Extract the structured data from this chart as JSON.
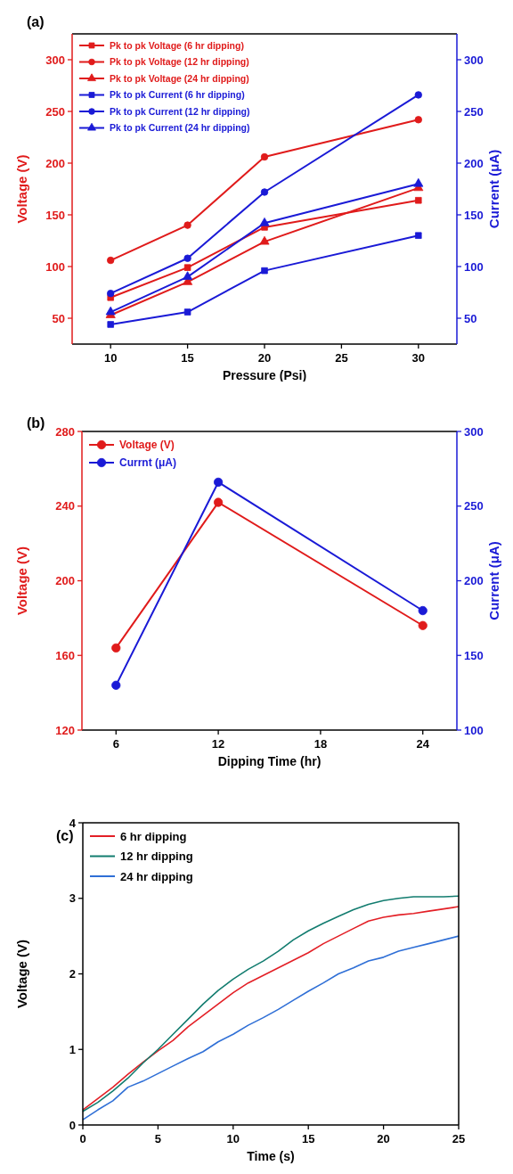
{
  "chart_data": [
    {
      "type": "line",
      "title": "(a)",
      "xlabel": "Pressure (Psi)",
      "ylabel": "Voltage (V)",
      "y2label": "Current (μA)",
      "x": [
        10,
        15,
        20,
        30
      ],
      "xlim": [
        7.5,
        32.5
      ],
      "xticks": [
        10,
        15,
        20,
        25,
        30
      ],
      "ylim": [
        25,
        325
      ],
      "yticks": [
        50,
        100,
        150,
        200,
        250,
        300
      ],
      "y2lim": [
        25,
        325
      ],
      "y2ticks": [
        50,
        100,
        150,
        200,
        250,
        300
      ],
      "legend": "top left",
      "grid": false,
      "series": [
        {
          "name": "Pk to pk Voltage (6 hr dipping)",
          "color": "#e01b1b",
          "marker": "square",
          "values": [
            70,
            99,
            138,
            164
          ]
        },
        {
          "name": "Pk to pk Voltage (12 hr dipping)",
          "color": "#e01b1b",
          "marker": "circle",
          "values": [
            106,
            140,
            206,
            242
          ]
        },
        {
          "name": "Pk to pk Voltage (24 hr dipping)",
          "color": "#e01b1b",
          "marker": "triangle",
          "values": [
            53,
            85,
            124,
            176
          ]
        },
        {
          "name": "Pk to pk Current (6 hr dipping)",
          "color": "#1a1ad6",
          "marker": "square",
          "axis": "y2",
          "values": [
            44,
            56,
            96,
            130
          ]
        },
        {
          "name": "Pk to pk Current (12 hr dipping)",
          "color": "#1a1ad6",
          "marker": "circle",
          "axis": "y2",
          "values": [
            74,
            108,
            172,
            266
          ]
        },
        {
          "name": "Pk to pk Current (24 hr dipping)",
          "color": "#1a1ad6",
          "marker": "triangle",
          "axis": "y2",
          "values": [
            56,
            90,
            142,
            180
          ]
        }
      ]
    },
    {
      "type": "line",
      "title": "(b)",
      "xlabel": "Dipping Time (hr)",
      "ylabel": "Voltage (V)",
      "y2label": "Current (μA)",
      "x": [
        6,
        12,
        24
      ],
      "xlim": [
        4,
        26
      ],
      "xticks": [
        6,
        12,
        18,
        24
      ],
      "ylim": [
        120,
        280
      ],
      "yticks": [
        120,
        160,
        200,
        240,
        280
      ],
      "y2lim": [
        100,
        300
      ],
      "y2ticks": [
        100,
        150,
        200,
        250,
        300
      ],
      "legend": "top left",
      "grid": false,
      "marker": "circle",
      "series": [
        {
          "name": "Voltage (V)",
          "color": "#e01b1b",
          "values": [
            164,
            242,
            176
          ]
        },
        {
          "name": "Currnt (μA)",
          "color": "#1a1ad6",
          "axis": "y2",
          "values": [
            130,
            266,
            180
          ]
        }
      ]
    },
    {
      "type": "line",
      "title": "(c)",
      "xlabel": "Time (s)",
      "ylabel": "Voltage (V)",
      "x": [
        0,
        1,
        2,
        3,
        4,
        5,
        6,
        7,
        8,
        9,
        10,
        11,
        12,
        13,
        14,
        15,
        16,
        17,
        18,
        19,
        20,
        21,
        22,
        23,
        24,
        25
      ],
      "xlim": [
        0,
        25
      ],
      "xticks": [
        0,
        5,
        10,
        15,
        20,
        25
      ],
      "ylim": [
        0,
        4
      ],
      "yticks": [
        0,
        1,
        2,
        3,
        4
      ],
      "legend": "top left",
      "grid": false,
      "marker": "none",
      "series": [
        {
          "name": "6 hr dipping",
          "color": "#e31f26",
          "values": [
            0.2,
            0.35,
            0.5,
            0.67,
            0.83,
            0.98,
            1.12,
            1.3,
            1.45,
            1.6,
            1.75,
            1.88,
            1.98,
            2.08,
            2.18,
            2.28,
            2.4,
            2.5,
            2.6,
            2.7,
            2.75,
            2.78,
            2.8,
            2.83,
            2.86,
            2.89
          ]
        },
        {
          "name": "12 hr dipping",
          "color": "#127c6f",
          "values": [
            0.18,
            0.3,
            0.45,
            0.62,
            0.82,
            1.0,
            1.2,
            1.4,
            1.6,
            1.78,
            1.93,
            2.06,
            2.17,
            2.3,
            2.45,
            2.57,
            2.67,
            2.76,
            2.85,
            2.92,
            2.97,
            3.0,
            3.02,
            3.02,
            3.02,
            3.03
          ]
        },
        {
          "name": "24 hr dipping",
          "color": "#2f6fd6",
          "values": [
            0.07,
            0.2,
            0.32,
            0.5,
            0.58,
            0.68,
            0.78,
            0.88,
            0.97,
            1.1,
            1.2,
            1.32,
            1.42,
            1.53,
            1.65,
            1.77,
            1.88,
            2.0,
            2.08,
            2.17,
            2.22,
            2.3,
            2.35,
            2.4,
            2.45,
            2.5
          ]
        }
      ]
    }
  ]
}
